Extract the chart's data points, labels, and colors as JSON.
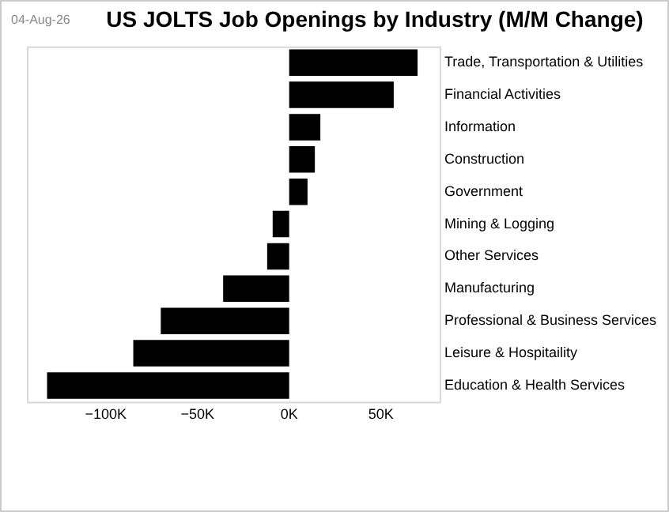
{
  "chart_data": {
    "type": "bar",
    "orientation": "horizontal",
    "title": "US JOLTS Job Openings by Industry (M/M Change)",
    "annotations": [
      "04-Aug-26"
    ],
    "categories": [
      "Trade, Transportation & Utilities",
      "Financial Activities",
      "Information",
      "Construction",
      "Government",
      "Mining & Logging",
      "Other Services",
      "Manufacturing",
      "Professional & Business Services",
      "Leisure & Hospitaility",
      "Education & Health Services"
    ],
    "values": [
      70,
      57,
      17,
      14,
      10,
      -9,
      -12,
      -36,
      -70,
      -85,
      -132
    ],
    "color": "#000000",
    "xlim": [
      -143,
      82
    ],
    "xticks": [
      {
        "value": -100,
        "label": "−100K"
      },
      {
        "value": -50,
        "label": "−50K"
      },
      {
        "value": 0,
        "label": "0K"
      },
      {
        "value": 50,
        "label": "50K"
      }
    ],
    "grid": false,
    "legend": false
  }
}
